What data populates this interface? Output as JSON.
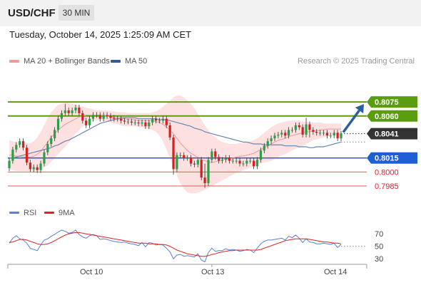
{
  "header": {
    "symbol": "USD/CHF",
    "timeframe": "30 MIN"
  },
  "timestamp": "Tuesday, October 14, 2025 1:25:09 AM CET",
  "legend": {
    "items": [
      {
        "label": "MA 20 + Bollinger Bands",
        "color": "#f29a9a"
      },
      {
        "label": "MA 50",
        "color": "#2f5b8f"
      }
    ],
    "credit": "Research © 2025 Trading Central"
  },
  "rsi_legend": {
    "items": [
      {
        "label": "RSI",
        "color": "#5a7fd6"
      },
      {
        "label": "9MA",
        "color": "#e02020"
      }
    ]
  },
  "colors": {
    "resistance": "#5a9e0f",
    "support": "#1f5fd6",
    "minor": "#e05a5a",
    "last": "#333333",
    "arrow": "#2d5e9e",
    "bb": "#fde0e0",
    "bull": "#27a148",
    "bear": "#d81e1e"
  },
  "chart_data": [
    {
      "type": "candlestick",
      "ylim": [
        0.7972,
        0.8098
      ],
      "x_ticks": [
        {
          "label": "Oct 10",
          "x": 58
        },
        {
          "label": "Oct 13",
          "x": 148
        },
        {
          "label": "Oct 14",
          "x": 228
        }
      ],
      "levels": [
        {
          "label": "0.8075",
          "value": 0.8075,
          "kind": "resistance"
        },
        {
          "label": "0.8060",
          "value": 0.806,
          "kind": "resistance"
        },
        {
          "label": "0.8041",
          "value": 0.8041,
          "kind": "last"
        },
        {
          "label": "0.8015",
          "value": 0.8015,
          "kind": "support"
        },
        {
          "label": "0.8000",
          "value": 0.8,
          "kind": "minor"
        },
        {
          "label": "0.7985",
          "value": 0.7985,
          "kind": "minor"
        }
      ],
      "forecast_arrow": {
        "from": 0.8041,
        "to": 0.8075
      },
      "series": [
        {
          "name": "Price (close)",
          "values": [
            0.8012,
            0.8024,
            0.8029,
            0.8033,
            0.8026,
            0.801,
            0.8003,
            0.8005,
            0.8002,
            0.8009,
            0.8021,
            0.803,
            0.8036,
            0.8045,
            0.8057,
            0.8063,
            0.8066,
            0.8063,
            0.8066,
            0.8069,
            0.8063,
            0.8055,
            0.805,
            0.8057,
            0.8061,
            0.8061,
            0.8057,
            0.8061,
            0.806,
            0.8058,
            0.8057,
            0.8057,
            0.8055,
            0.8054,
            0.8054,
            0.8053,
            0.8053,
            0.8052,
            0.8053,
            0.8049,
            0.8053,
            0.8057,
            0.8055,
            0.8055,
            0.8057,
            0.805,
            0.8037,
            0.8003,
            0.8018,
            0.8018,
            0.8015,
            0.8015,
            0.8009,
            0.8008,
            0.8013,
            0.7994,
            0.7988,
            0.8013,
            0.8022,
            0.8016,
            0.8012,
            0.8013,
            0.8015,
            0.8012,
            0.8012,
            0.8012,
            0.8009,
            0.8009,
            0.8012,
            0.8012,
            0.8006,
            0.8013,
            0.8023,
            0.8028,
            0.8033,
            0.8036,
            0.8039,
            0.804,
            0.8042,
            0.8039,
            0.8045,
            0.8045,
            0.805,
            0.8048,
            0.804,
            0.8051,
            0.8045,
            0.8043,
            0.8042,
            0.8042,
            0.8042,
            0.8039,
            0.8039,
            0.8042,
            0.8036,
            0.8041
          ]
        },
        {
          "name": "MA 50",
          "values": [
            0.8015,
            0.8015,
            0.8016,
            0.8017,
            0.8018,
            0.8019,
            0.802,
            0.8021,
            0.8022,
            0.8023,
            0.8024,
            0.8025,
            0.8026,
            0.8028,
            0.8029,
            0.8031,
            0.8033,
            0.8034,
            0.8036,
            0.8038,
            0.804,
            0.8042,
            0.8044,
            0.8046,
            0.8048,
            0.805,
            0.8052,
            0.8053,
            0.8054,
            0.8055,
            0.8056,
            0.8057,
            0.8058,
            0.8058,
            0.8058,
            0.8058,
            0.8058,
            0.8057,
            0.8057,
            0.8057,
            0.8057,
            0.8057,
            0.8057,
            0.8056,
            0.8056,
            0.8056,
            0.8055,
            0.8054,
            0.8053,
            0.8052,
            0.8051,
            0.805,
            0.8049,
            0.8047,
            0.8046,
            0.8045,
            0.8043,
            0.8042,
            0.8041,
            0.804,
            0.8039,
            0.8038,
            0.8037,
            0.8036,
            0.8035,
            0.8034,
            0.8033,
            0.8032,
            0.8032,
            0.8031,
            0.803,
            0.803,
            0.803,
            0.8029,
            0.8029,
            0.8029,
            0.8029,
            0.8029,
            0.8029,
            0.8028,
            0.8028,
            0.8028,
            0.8028,
            0.8027,
            0.8027,
            0.8027,
            0.8026,
            0.8026,
            0.8027,
            0.8027,
            0.8027,
            0.8028,
            0.8029,
            0.803,
            0.8031,
            0.8032
          ]
        },
        {
          "name": "MA 20",
          "values": [
            0.8018,
            0.8018,
            0.8017,
            0.8017,
            0.8016,
            0.8016,
            0.8016,
            0.8017,
            0.8019,
            0.8022,
            0.8027,
            0.8032,
            0.8037,
            0.8041,
            0.8045,
            0.8048,
            0.8051,
            0.8053,
            0.8055,
            0.8057,
            0.8059,
            0.806,
            0.8061,
            0.8061,
            0.8061,
            0.8061,
            0.8061,
            0.806,
            0.806,
            0.8059,
            0.8058,
            0.8058,
            0.8057,
            0.8057,
            0.8056,
            0.8056,
            0.8056,
            0.8055,
            0.8055,
            0.8055,
            0.8055,
            0.8055,
            0.8054,
            0.8053,
            0.8051,
            0.8048,
            0.8045,
            0.8041,
            0.8036,
            0.8031,
            0.8027,
            0.8023,
            0.802,
            0.8018,
            0.8015,
            0.8013,
            0.8012,
            0.8011,
            0.801,
            0.8011,
            0.8012,
            0.8013,
            0.8014,
            0.8014,
            0.8015,
            0.8016,
            0.8017,
            0.8017,
            0.8018,
            0.8019,
            0.802,
            0.8022,
            0.8024,
            0.8026,
            0.8028,
            0.803,
            0.8032,
            0.8034,
            0.8035,
            0.8036,
            0.8038,
            0.8039,
            0.804,
            0.8041,
            0.8042,
            0.8043,
            0.8043,
            0.8044,
            0.8044,
            0.8045,
            0.8045,
            0.8046,
            0.8046,
            0.8046,
            0.8046,
            0.8046
          ]
        },
        {
          "name": "BB upper",
          "values": [
            0.8034,
            0.8033,
            0.8032,
            0.8032,
            0.8031,
            0.8031,
            0.8031,
            0.8033,
            0.8037,
            0.8043,
            0.805,
            0.8058,
            0.8064,
            0.8068,
            0.8072,
            0.8073,
            0.8074,
            0.8074,
            0.8073,
            0.8072,
            0.8071,
            0.807,
            0.8069,
            0.8068,
            0.8067,
            0.8066,
            0.8066,
            0.8066,
            0.8066,
            0.8065,
            0.8065,
            0.8064,
            0.8064,
            0.8064,
            0.8063,
            0.8063,
            0.8063,
            0.8063,
            0.8063,
            0.8063,
            0.8063,
            0.8064,
            0.8065,
            0.8067,
            0.807,
            0.8073,
            0.8076,
            0.808,
            0.8082,
            0.8082,
            0.808,
            0.8077,
            0.8073,
            0.8068,
            0.8062,
            0.8056,
            0.805,
            0.8045,
            0.804,
            0.8037,
            0.8034,
            0.8032,
            0.8031,
            0.803,
            0.803,
            0.803,
            0.8031,
            0.8031,
            0.8032,
            0.8033,
            0.8034,
            0.8036,
            0.8039,
            0.8042,
            0.8045,
            0.8048,
            0.805,
            0.8052,
            0.8053,
            0.8054,
            0.8055,
            0.8055,
            0.8055,
            0.8055,
            0.8054,
            0.8054,
            0.8053,
            0.8053,
            0.8053,
            0.8053,
            0.8052,
            0.8052,
            0.8052,
            0.8052,
            0.8052,
            0.8052
          ]
        },
        {
          "name": "BB lower",
          "values": [
            0.8003,
            0.8002,
            0.8001,
            0.8001,
            0.8001,
            0.8001,
            0.8001,
            0.8001,
            0.8002,
            0.8003,
            0.8005,
            0.8007,
            0.8011,
            0.8015,
            0.8019,
            0.8023,
            0.8027,
            0.8031,
            0.8036,
            0.8041,
            0.8045,
            0.8049,
            0.8051,
            0.8053,
            0.8055,
            0.8055,
            0.8055,
            0.8055,
            0.8054,
            0.8053,
            0.8052,
            0.8051,
            0.805,
            0.8049,
            0.8049,
            0.8049,
            0.8049,
            0.8048,
            0.8048,
            0.8047,
            0.8046,
            0.8045,
            0.8043,
            0.8039,
            0.8033,
            0.8024,
            0.8015,
            0.8006,
            0.7996,
            0.7988,
            0.7982,
            0.7978,
            0.7977,
            0.7977,
            0.7978,
            0.7979,
            0.7981,
            0.7983,
            0.7985,
            0.7987,
            0.7989,
            0.7991,
            0.7993,
            0.7995,
            0.7997,
            0.7999,
            0.8,
            0.8002,
            0.8003,
            0.8005,
            0.8006,
            0.8008,
            0.8009,
            0.801,
            0.8011,
            0.8012,
            0.8014,
            0.8016,
            0.8018,
            0.8019,
            0.8021,
            0.8023,
            0.8025,
            0.8026,
            0.8028,
            0.803,
            0.8032,
            0.8034,
            0.8035,
            0.8036,
            0.8037,
            0.8038,
            0.8039,
            0.804,
            0.804,
            0.804
          ]
        }
      ]
    },
    {
      "type": "line",
      "ylim": [
        20,
        85
      ],
      "y_ticks": [
        "70",
        "50",
        "30"
      ],
      "y_tick_values": [
        70,
        50,
        30
      ],
      "series": [
        {
          "name": "RSI",
          "values": [
            55,
            63,
            67,
            62,
            60,
            55,
            47,
            45,
            43,
            52,
            60,
            62,
            66,
            69,
            73,
            76,
            74,
            71,
            72,
            76,
            69,
            65,
            63,
            67,
            69,
            67,
            61,
            62,
            61,
            59,
            58,
            57,
            56,
            57,
            55,
            54,
            53,
            51,
            56,
            49,
            56,
            55,
            52,
            53,
            52,
            47,
            41,
            30,
            36,
            37,
            34,
            35,
            34,
            33,
            38,
            28,
            25,
            40,
            47,
            42,
            43,
            43,
            46,
            44,
            45,
            44,
            42,
            43,
            45,
            44,
            40,
            47,
            54,
            58,
            60,
            60,
            61,
            62,
            63,
            60,
            66,
            64,
            68,
            63,
            56,
            62,
            57,
            56,
            54,
            54,
            55,
            54,
            53,
            55,
            48,
            53
          ]
        },
        {
          "name": "9MA",
          "values": [
            56,
            57,
            59,
            61,
            61,
            60,
            58,
            56,
            54,
            53,
            53,
            54,
            56,
            59,
            62,
            65,
            68,
            70,
            71,
            72,
            72,
            71,
            70,
            69,
            68,
            67,
            66,
            65,
            64,
            63,
            62,
            61,
            60,
            59,
            58,
            57,
            56,
            55,
            55,
            55,
            54,
            54,
            54,
            53,
            53,
            52,
            50,
            47,
            44,
            42,
            40,
            38,
            37,
            36,
            35,
            34,
            34,
            35,
            37,
            38,
            40,
            41,
            42,
            43,
            43,
            44,
            44,
            44,
            44,
            44,
            44,
            44,
            45,
            47,
            49,
            51,
            53,
            55,
            57,
            59,
            60,
            61,
            62,
            62,
            62,
            62,
            61,
            60,
            59,
            58,
            57,
            57,
            56,
            55,
            55,
            54
          ]
        }
      ]
    }
  ]
}
